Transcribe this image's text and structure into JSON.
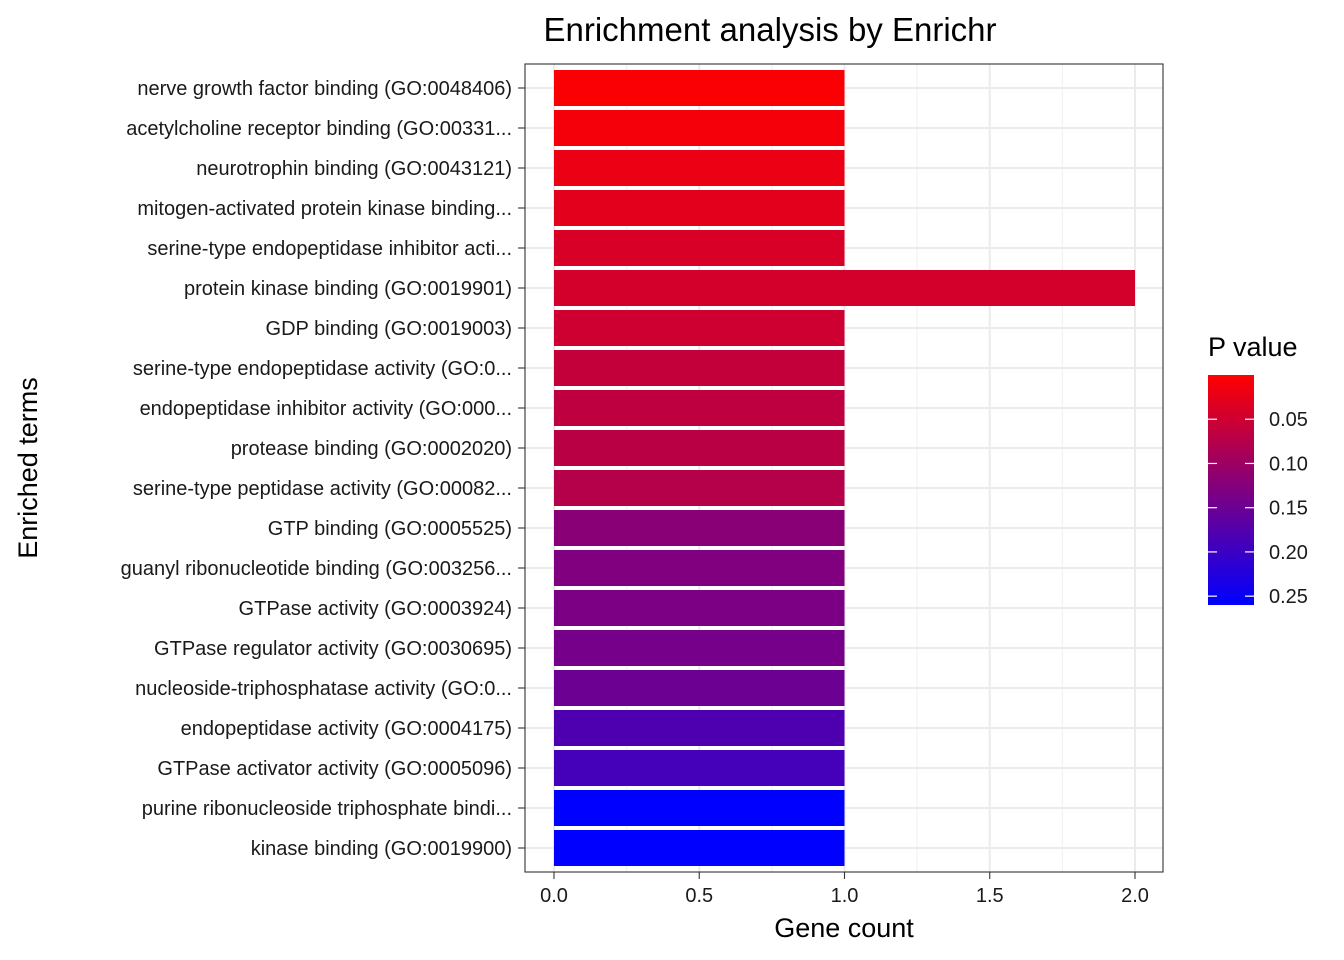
{
  "chart_data": {
    "type": "bar",
    "orientation": "horizontal",
    "title": "Enrichment analysis by Enrichr",
    "xlabel": "Gene count",
    "ylabel": "Enriched terms",
    "xlim": [
      -0.1,
      2.1
    ],
    "xticks": [
      0.0,
      0.5,
      1.0,
      1.5,
      2.0
    ],
    "xtick_labels": [
      "0.0",
      "0.5",
      "1.0",
      "1.5",
      "2.0"
    ],
    "grid": true,
    "categories": [
      "nerve growth factor binding (GO:0048406)",
      "acetylcholine receptor binding (GO:00331...",
      "neurotrophin binding (GO:0043121)",
      "mitogen-activated protein kinase binding...",
      "serine-type endopeptidase inhibitor acti...",
      "protein kinase binding (GO:0019901)",
      "GDP binding (GO:0019003)",
      "serine-type endopeptidase activity (GO:0...",
      "endopeptidase inhibitor activity (GO:000...",
      "protease binding (GO:0002020)",
      "serine-type peptidase activity (GO:00082...",
      "GTP binding (GO:0005525)",
      "guanyl ribonucleotide binding (GO:003256...",
      "GTPase activity (GO:0003924)",
      "GTPase regulator activity (GO:0030695)",
      "nucleoside-triphosphatase activity (GO:0...",
      "endopeptidase activity (GO:0004175)",
      "GTPase activator activity (GO:0005096)",
      "purine ribonucleoside triphosphate bindi...",
      "kinase binding (GO:0019900)"
    ],
    "values": [
      1,
      1,
      1,
      1,
      1,
      2,
      1,
      1,
      1,
      1,
      1,
      1,
      1,
      1,
      1,
      1,
      1,
      1,
      1,
      1
    ],
    "p_values": [
      0.005,
      0.01,
      0.02,
      0.03,
      0.04,
      0.045,
      0.05,
      0.06,
      0.065,
      0.07,
      0.075,
      0.12,
      0.13,
      0.135,
      0.14,
      0.15,
      0.18,
      0.19,
      0.26,
      0.26
    ],
    "legend": {
      "title": "P value",
      "placement": "right",
      "ticks": [
        0.05,
        0.1,
        0.15,
        0.2,
        0.25
      ],
      "tick_labels": [
        "0.05",
        "0.10",
        "0.15",
        "0.20",
        "0.25"
      ],
      "range": [
        0.0,
        0.26
      ],
      "low_color": "#ff0000",
      "high_color": "#0000ff"
    }
  }
}
